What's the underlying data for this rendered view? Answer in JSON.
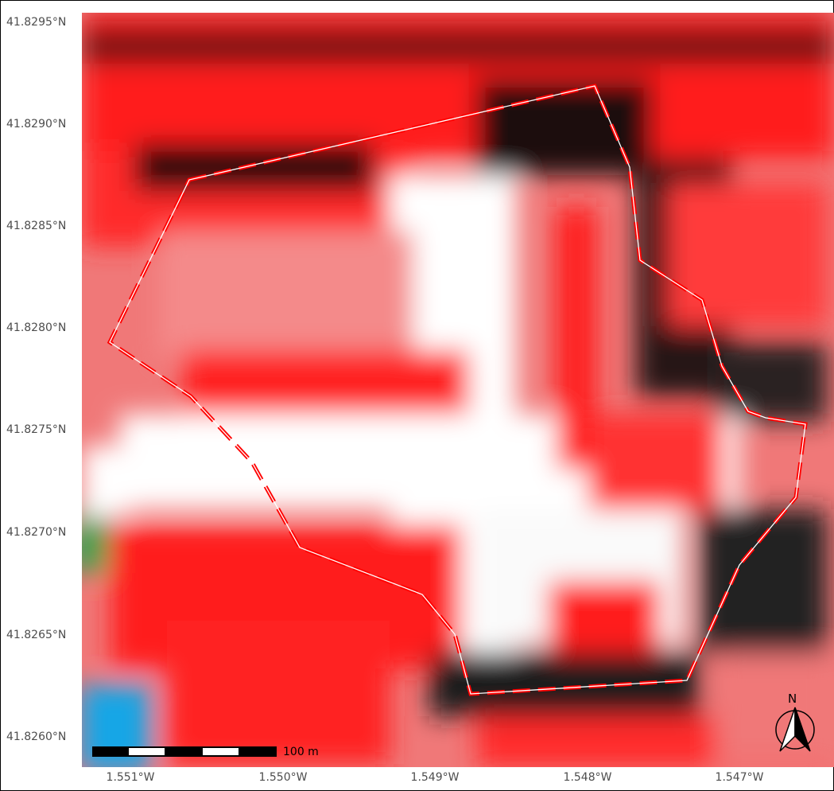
{
  "map": {
    "lat_ticks": [
      "41.8295°N",
      "41.8290°N",
      "41.8285°N",
      "41.8280°N",
      "41.8275°N",
      "41.8270°N",
      "41.8265°N",
      "41.8260°N"
    ],
    "lon_ticks": [
      "1.551°W",
      "1.550°W",
      "1.549°W",
      "1.548°W",
      "1.547°W"
    ],
    "scale_bar": {
      "label": "100 m",
      "segments": 5
    },
    "north_arrow": {
      "letter": "N"
    },
    "boundary": {
      "stroke_color": "#ff0000",
      "inner_color": "#ffffff",
      "style": "dashed"
    },
    "colors": {
      "vegetation": "#ff1a1a",
      "bare_ground": "#ffffff",
      "shadow": "#1a1a1a",
      "water": "#14a6e6",
      "green_patch": "#1aa64d",
      "pink": "#f08080"
    }
  }
}
